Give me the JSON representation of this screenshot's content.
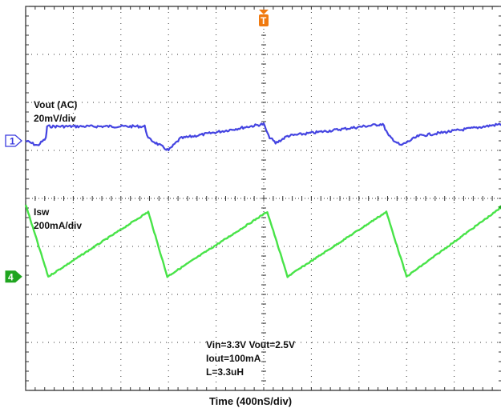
{
  "chart_data": {
    "type": "line",
    "title": "",
    "xlabel": "Time  (400nS/div)",
    "ylabel": "",
    "grid": true,
    "divisions": {
      "horizontal": 10,
      "vertical": 8
    },
    "time_per_div_ns": 400,
    "xlim_ns": [
      0,
      4000
    ],
    "trigger_marker": "T",
    "series": [
      {
        "name": "Vout (AC)",
        "scale": "20mV/div",
        "channel_marker": "1",
        "color": "#3a3adf",
        "offset_div": 1.2,
        "y_unit": "mV",
        "x_ns": [
          0,
          100,
          170,
          180,
          1000,
          1030,
          1200,
          1300,
          2000,
          2040,
          2100,
          2200,
          3000,
          3050,
          3150,
          3300,
          4000
        ],
        "y_mV": [
          0,
          -2,
          1,
          6,
          6,
          1,
          -4,
          1,
          7,
          2,
          -1,
          2,
          7,
          2,
          -2,
          2,
          7
        ]
      },
      {
        "name": "Isw",
        "scale": "200mA/div",
        "channel_marker": "4",
        "color": "#3ee23e",
        "offset_div": -1.63,
        "y_unit": "mA",
        "x_ns": [
          0,
          190,
          1030,
          1190,
          2030,
          2200,
          3030,
          3200,
          4000
        ],
        "y_mA": [
          300,
          0,
          270,
          0,
          270,
          0,
          270,
          0,
          290
        ]
      }
    ],
    "annotations": [
      "Vin=3.3V  Vout=2.5V",
      "Iout=100mA",
      "L=3.3uH"
    ]
  }
}
